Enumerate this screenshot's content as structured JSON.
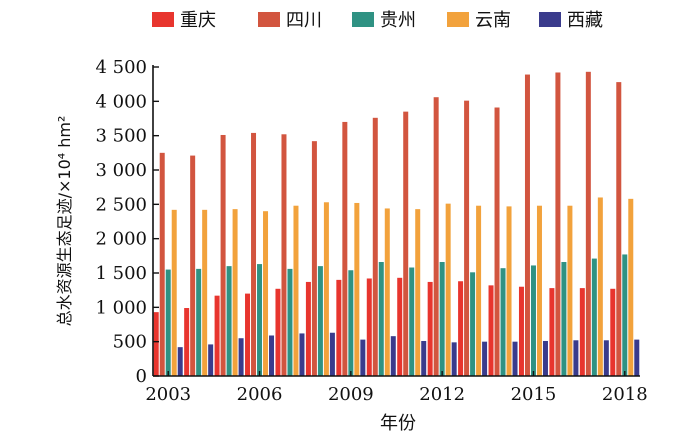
{
  "chart_data": {
    "type": "bar",
    "xlabel": "年份",
    "ylabel": "总水资源生态足迹/×10⁴ hm²",
    "ylim": [
      0,
      4500
    ],
    "yticks": [
      0,
      500,
      1000,
      1500,
      2000,
      2500,
      3000,
      3500,
      4000,
      4500
    ],
    "ytick_labels": [
      "0",
      "500",
      "1 000",
      "1 500",
      "2 000",
      "2 500",
      "3 000",
      "3 500",
      "4 000",
      "4 500"
    ],
    "xtick_labels": [
      "2003",
      "2006",
      "2009",
      "2012",
      "2015",
      "2018"
    ],
    "xtick_years": [
      2003,
      2006,
      2009,
      2012,
      2015,
      2018
    ],
    "categories": [
      "2003",
      "2004",
      "2005",
      "2006",
      "2007",
      "2008",
      "2009",
      "2010",
      "2011",
      "2012",
      "2013",
      "2014",
      "2015",
      "2016",
      "2017",
      "2018"
    ],
    "legend_position": "top",
    "grid": false,
    "series": [
      {
        "name": "重庆",
        "color": "#e8352e",
        "values": [
          930,
          990,
          1170,
          1200,
          1270,
          1370,
          1400,
          1420,
          1430,
          1370,
          1380,
          1320,
          1300,
          1280,
          1280,
          1270
        ]
      },
      {
        "name": "四川",
        "color": "#d2553f",
        "values": [
          3250,
          3210,
          3510,
          3540,
          3520,
          3420,
          3700,
          3760,
          3850,
          4060,
          4010,
          3910,
          4390,
          4420,
          4430,
          4280
        ]
      },
      {
        "name": "贵州",
        "color": "#2f9283",
        "values": [
          1550,
          1560,
          1600,
          1630,
          1560,
          1600,
          1540,
          1660,
          1580,
          1660,
          1510,
          1570,
          1610,
          1660,
          1710,
          1770
        ]
      },
      {
        "name": "云南",
        "color": "#f2a23c",
        "values": [
          2420,
          2420,
          2430,
          2400,
          2480,
          2530,
          2520,
          2440,
          2430,
          2510,
          2480,
          2470,
          2480,
          2480,
          2600,
          2580
        ]
      },
      {
        "name": "西藏",
        "color": "#3a3b8c",
        "values": [
          420,
          460,
          550,
          590,
          620,
          630,
          530,
          580,
          510,
          490,
          500,
          500,
          510,
          520,
          520,
          530
        ]
      }
    ]
  }
}
